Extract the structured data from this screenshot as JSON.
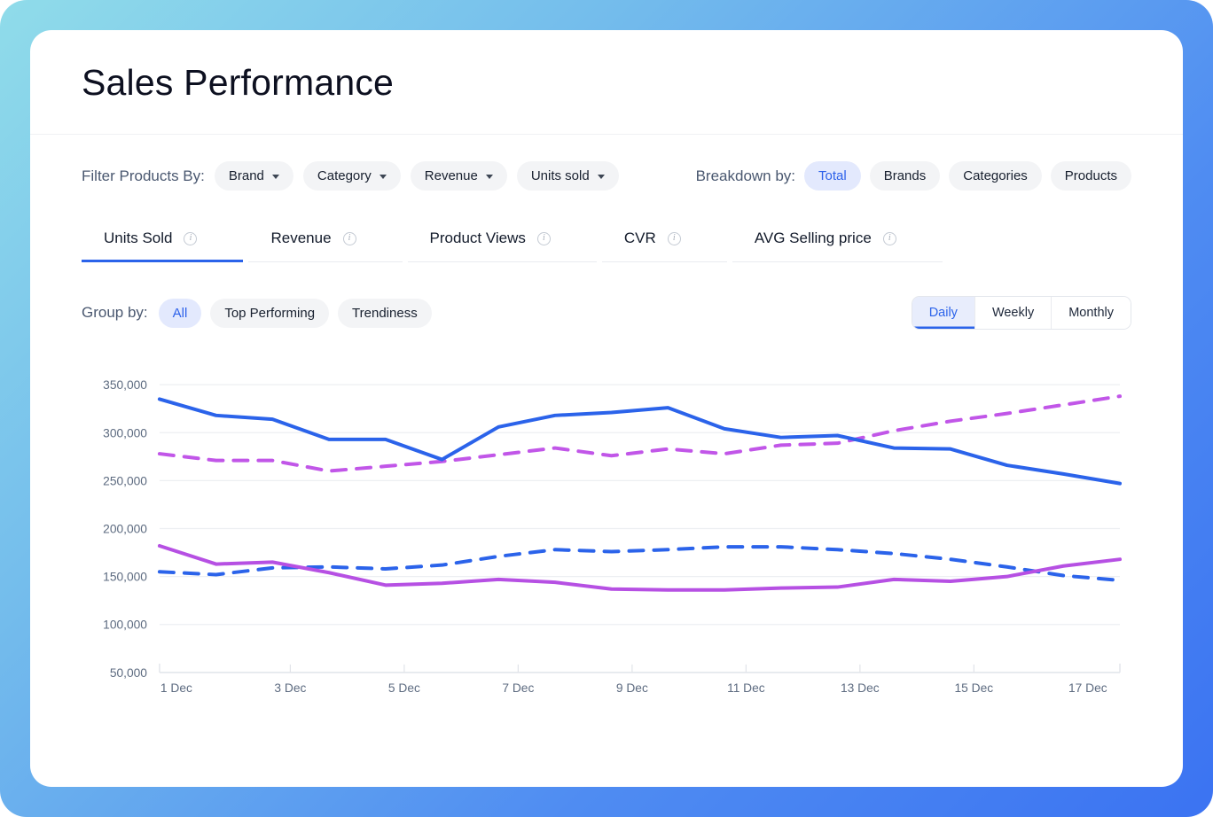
{
  "header": {
    "title": "Sales Performance"
  },
  "filters": {
    "label": "Filter Products By:",
    "dropdowns": [
      {
        "label": "Brand"
      },
      {
        "label": "Category"
      },
      {
        "label": "Revenue"
      },
      {
        "label": "Units sold"
      }
    ],
    "breakdown": {
      "label": "Breakdown by:",
      "options": [
        {
          "label": "Total",
          "active": true
        },
        {
          "label": "Brands",
          "active": false
        },
        {
          "label": "Categories",
          "active": false
        },
        {
          "label": "Products",
          "active": false
        }
      ]
    }
  },
  "tabs": [
    {
      "label": "Units Sold",
      "active": true
    },
    {
      "label": "Revenue",
      "active": false
    },
    {
      "label": "Product Views",
      "active": false
    },
    {
      "label": "CVR",
      "active": false
    },
    {
      "label": "AVG Selling price",
      "active": false
    }
  ],
  "group_by": {
    "label": "Group by:",
    "options": [
      {
        "label": "All",
        "active": true
      },
      {
        "label": "Top Performing",
        "active": false
      },
      {
        "label": "Trendiness",
        "active": false
      }
    ]
  },
  "time_range": {
    "options": [
      {
        "label": "Daily",
        "active": true
      },
      {
        "label": "Weekly",
        "active": false
      },
      {
        "label": "Monthly",
        "active": false
      }
    ]
  },
  "colors": {
    "accent_blue": "#2b63ea",
    "active_pill_bg": "#e3e9fd",
    "pill_bg": "#f3f4f6",
    "grid_line": "#edeff2",
    "axis_line": "#e1e4e9",
    "axis_text": "#5d6b80",
    "frame_gradient_start": "#90dcea",
    "frame_gradient_end": "#3b73f2"
  },
  "chart_data": {
    "type": "line",
    "title": "",
    "xlabel": "",
    "ylabel": "",
    "x_tick_labels": [
      "1 Dec",
      "3 Dec",
      "5 Dec",
      "7 Dec",
      "9 Dec",
      "11 Dec",
      "13 Dec",
      "15 Dec",
      "17 Dec"
    ],
    "x_points": [
      "1 Dec",
      "2 Dec",
      "3 Dec",
      "4 Dec",
      "5 Dec",
      "6 Dec",
      "7 Dec",
      "8 Dec",
      "9 Dec",
      "10 Dec",
      "11 Dec",
      "12 Dec",
      "13 Dec",
      "14 Dec",
      "15 Dec",
      "16 Dec",
      "17 Dec",
      "edge-clipped"
    ],
    "x_points_note": "last value is the line continuation clipped at the right edge of the plot",
    "ylim": [
      50000,
      350000
    ],
    "yticks": [
      50000,
      100000,
      150000,
      200000,
      250000,
      300000,
      350000
    ],
    "grid": "horizontal",
    "legend": "none",
    "series": [
      {
        "name": "magenta-dashed-line",
        "style": "dashed",
        "color": "#c156e8",
        "values": [
          278000,
          271000,
          271000,
          260000,
          265000,
          270000,
          277000,
          284000,
          276000,
          283000,
          278000,
          287000,
          289000,
          302000,
          312000,
          320000,
          329000,
          338000
        ]
      },
      {
        "name": "blue-dashed-line",
        "style": "dashed",
        "color": "#2b63ea",
        "values": [
          155000,
          152000,
          159000,
          160000,
          158000,
          162000,
          171000,
          178000,
          176000,
          178000,
          181000,
          181000,
          178000,
          174000,
          168000,
          160000,
          151000,
          146000
        ]
      },
      {
        "name": "magenta-solid-line",
        "style": "solid",
        "color": "#b650e3",
        "values": [
          182000,
          163000,
          165000,
          154000,
          141000,
          143000,
          147000,
          144000,
          137000,
          136000,
          136000,
          138000,
          139000,
          147000,
          145000,
          150000,
          161000,
          168000
        ]
      },
      {
        "name": "blue-solid-line",
        "style": "solid",
        "color": "#2b63ea",
        "values": [
          335000,
          318000,
          314000,
          293000,
          293000,
          272000,
          306000,
          318000,
          321000,
          326000,
          304000,
          295000,
          297000,
          284000,
          283000,
          266000,
          257000,
          247000
        ]
      }
    ]
  }
}
